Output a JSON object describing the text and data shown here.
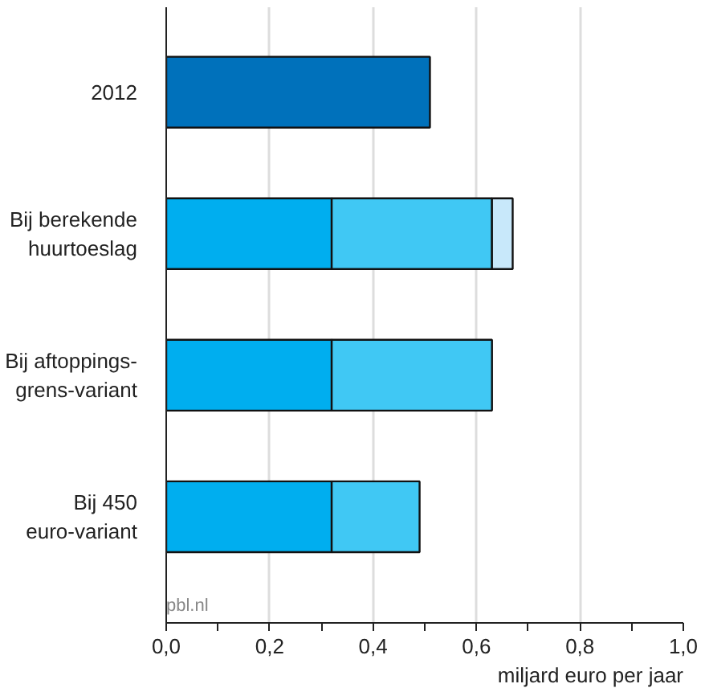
{
  "chart_data": {
    "type": "bar",
    "orientation": "horizontal",
    "stacked": true,
    "categories": [
      "2012",
      "Bij berekende\nhuurtoeslag",
      "Bij aftoppings-\ngrens-variant",
      "Bij 450\neuro-variant"
    ],
    "series": [
      {
        "colors": [
          "#0071bb",
          "#00aeef",
          "#00aeef",
          "#00aeef"
        ],
        "values": [
          0.51,
          0.32,
          0.32,
          0.32
        ]
      },
      {
        "color": "#40c8f4",
        "values": [
          null,
          0.31,
          0.31,
          0.17
        ]
      },
      {
        "color": "#c8e8fa",
        "values": [
          null,
          0.04,
          null,
          null
        ]
      }
    ],
    "xlim": [
      0,
      1.0
    ],
    "xticks": [
      {
        "value": 0,
        "label": "0,0"
      },
      {
        "value": 0.1,
        "label": null
      },
      {
        "value": 0.2,
        "label": "0,2"
      },
      {
        "value": 0.3,
        "label": null
      },
      {
        "value": 0.4,
        "label": "0,4"
      },
      {
        "value": 0.5,
        "label": null
      },
      {
        "value": 0.6,
        "label": "0,6"
      },
      {
        "value": 0.7,
        "label": null
      },
      {
        "value": 0.8,
        "label": "0,8"
      },
      {
        "value": 0.9,
        "label": null
      },
      {
        "value": 1.0,
        "label": "1,0"
      }
    ],
    "xlabel": "miljard euro per jaar",
    "annotations": [
      "pbl.nl"
    ],
    "grid": "x"
  }
}
